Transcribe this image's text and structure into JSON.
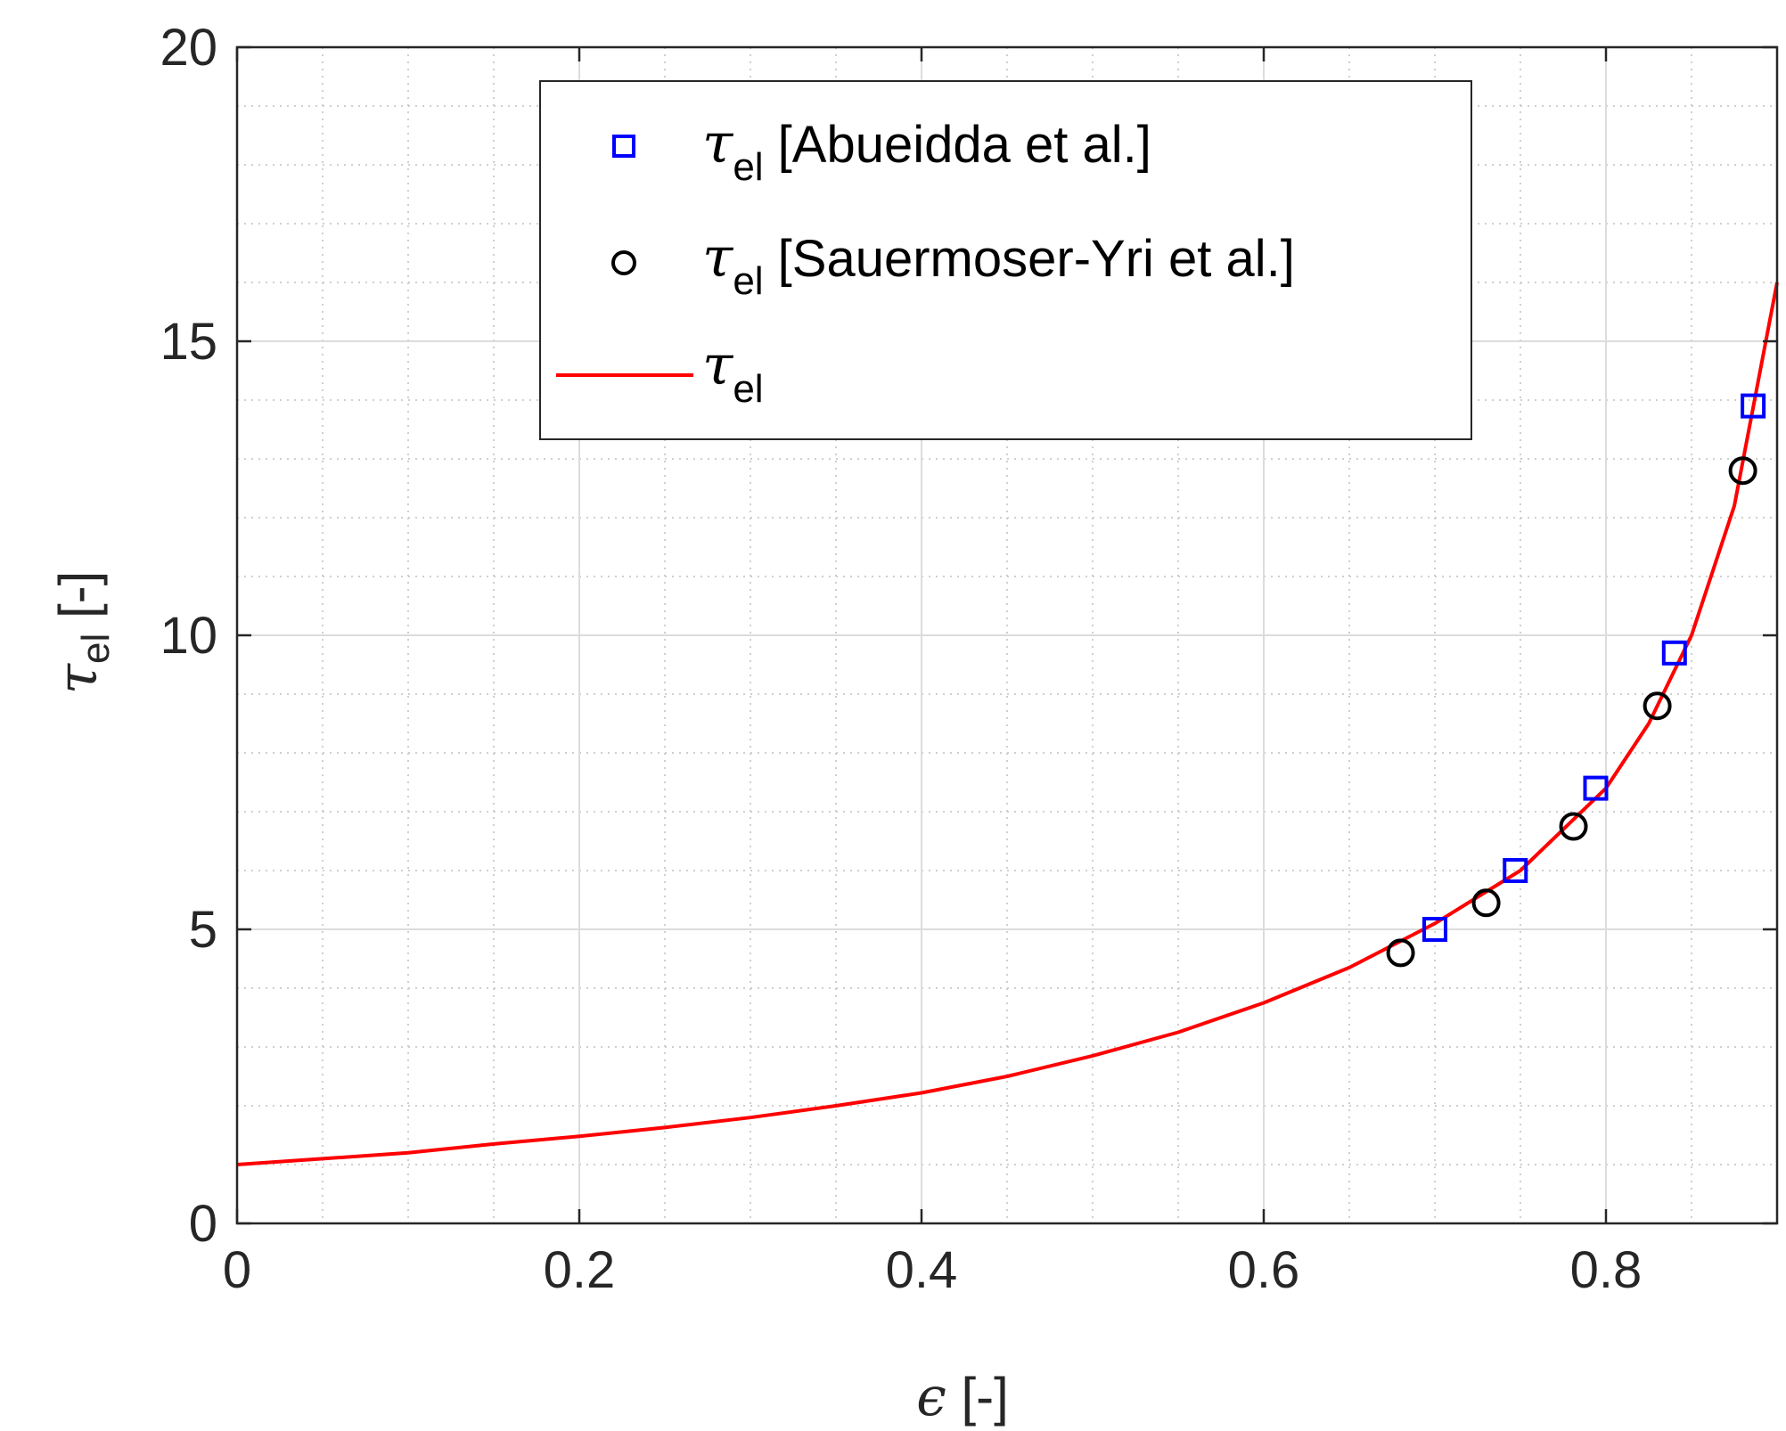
{
  "chart_data": {
    "type": "scatter",
    "xlabel": {
      "symbol": "ϵ",
      "text": " [-]"
    },
    "ylabel": {
      "symbol": "τ",
      "sub": "el",
      "text": " [-]"
    },
    "xlim": [
      0,
      0.9
    ],
    "ylim": [
      0,
      20
    ],
    "x_ticks": [
      0,
      0.2,
      0.4,
      0.6,
      0.8
    ],
    "x_tick_labels": [
      "0",
      "0.2",
      "0.4",
      "0.6",
      "0.8"
    ],
    "y_ticks": [
      0,
      5,
      10,
      15,
      20
    ],
    "y_tick_labels": [
      "0",
      "5",
      "10",
      "15",
      "20"
    ],
    "x_minor_step": 0.05,
    "y_minor_step": 1,
    "grid": true,
    "legend_position": "top-center",
    "series": [
      {
        "name": "τel [Abueidda et al.]",
        "legend_symbol": "τ",
        "legend_sub": "el",
        "legend_text": " [Abueidda et al.]",
        "marker": "square",
        "color": "#0000ff",
        "x": [
          0.7,
          0.747,
          0.794,
          0.84,
          0.886
        ],
        "y": [
          5.0,
          6.0,
          7.4,
          9.7,
          13.9
        ]
      },
      {
        "name": "τel [Sauermoser-Yri et al.]",
        "legend_symbol": "τ",
        "legend_sub": "el",
        "legend_text": " [Sauermoser-Yri et al.]",
        "marker": "circle",
        "color": "#000000",
        "x": [
          0.68,
          0.73,
          0.781,
          0.83,
          0.88
        ],
        "y": [
          4.6,
          5.45,
          6.75,
          8.8,
          12.8
        ]
      },
      {
        "name": "τel",
        "legend_symbol": "τ",
        "legend_sub": "el",
        "legend_text": "",
        "marker": "line",
        "color": "#ff0000",
        "x": [
          0,
          0.05,
          0.1,
          0.15,
          0.2,
          0.25,
          0.3,
          0.35,
          0.4,
          0.45,
          0.5,
          0.55,
          0.6,
          0.65,
          0.7,
          0.75,
          0.8,
          0.825,
          0.85,
          0.875,
          0.9
        ],
        "y": [
          1.0,
          1.1,
          1.2,
          1.35,
          1.48,
          1.63,
          1.8,
          2.0,
          2.22,
          2.5,
          2.85,
          3.25,
          3.75,
          4.35,
          5.1,
          6.0,
          7.4,
          8.5,
          10.0,
          12.2,
          16.0
        ]
      }
    ]
  }
}
